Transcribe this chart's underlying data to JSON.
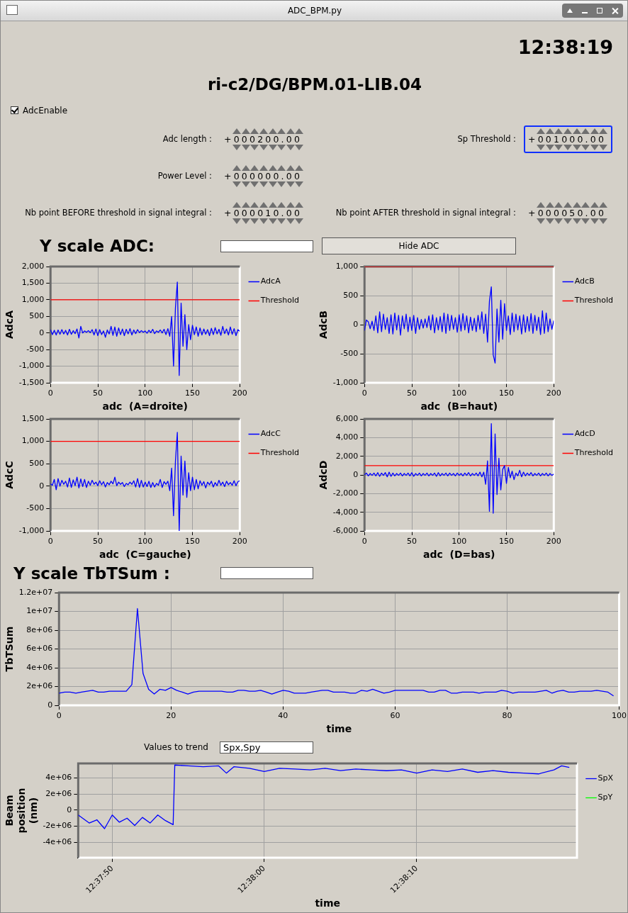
{
  "chart_data": [
    {
      "type": "other",
      "title": "ri-c2/DG/BPM.01-LIB.04",
      "annotations": [
        "ADC_BPM.py",
        "12:38:19",
        "AdcEnable",
        "Adc length :",
        "+000200.00",
        "Sp Threshold :",
        "+001000.00",
        "Power Level :",
        "+000000.00",
        "Nb point BEFORE threshold in signal integral :",
        "+000010.00",
        "Nb point AFTER threshold in signal integral :",
        "+000050.00",
        "Y scale ADC:",
        "Hide ADC"
      ]
    },
    {
      "type": "line",
      "xlabel": "adc  (A=droite)",
      "ylabel": "AdcA",
      "xlim": [
        0,
        200
      ],
      "xticks": [
        0,
        50,
        100,
        150,
        200
      ],
      "ylim": [
        -1500,
        2000
      ],
      "yticks": [
        {
          "value": -1500,
          "label": "-1,500"
        },
        {
          "value": -1000,
          "label": "-1,000"
        },
        -500,
        0,
        500,
        {
          "value": 1000,
          "label": "1,000"
        },
        {
          "value": 1500,
          "label": "1,500"
        },
        {
          "value": 2000,
          "label": "2,000"
        }
      ],
      "grid": true,
      "legend": "right",
      "x": [
        0,
        2,
        4,
        6,
        8,
        10,
        12,
        14,
        16,
        18,
        20,
        22,
        24,
        26,
        28,
        30,
        32,
        34,
        36,
        38,
        40,
        42,
        44,
        46,
        48,
        50,
        52,
        54,
        56,
        58,
        60,
        62,
        64,
        66,
        68,
        70,
        72,
        74,
        76,
        78,
        80,
        82,
        84,
        86,
        88,
        90,
        92,
        94,
        96,
        98,
        100,
        102,
        104,
        106,
        108,
        110,
        112,
        114,
        116,
        118,
        120,
        122,
        124,
        126,
        128,
        130,
        132,
        134,
        136,
        138,
        140,
        142,
        144,
        146,
        148,
        150,
        152,
        154,
        156,
        158,
        160,
        162,
        164,
        166,
        168,
        170,
        172,
        174,
        176,
        178,
        180,
        182,
        184,
        186,
        188,
        190,
        192,
        194,
        196,
        198,
        200
      ],
      "series": [
        {
          "name": "AdcA",
          "color": "#0000ff",
          "values": [
            100,
            -50,
            80,
            -60,
            90,
            -40,
            100,
            -30,
            80,
            -60,
            110,
            -40,
            70,
            -20,
            120,
            -150,
            200,
            0,
            60,
            20,
            70,
            10,
            100,
            -60,
            120,
            -80,
            100,
            -50,
            60,
            -130,
            90,
            -30,
            200,
            -70,
            180,
            -100,
            150,
            -50,
            120,
            -80,
            110,
            -30,
            130,
            -60,
            90,
            -20,
            100,
            10,
            70,
            20,
            60,
            -10,
            80,
            10,
            110,
            -20,
            60,
            20,
            90,
            0,
            110,
            -50,
            130,
            -100,
            500,
            -1000,
            750,
            1530,
            -1280,
            900,
            -400,
            550,
            -500,
            250,
            -200,
            230,
            -50,
            180,
            -100,
            150,
            -60,
            120,
            -40,
            100,
            -80,
            140,
            -50,
            160,
            -30,
            110,
            -70,
            200,
            -20,
            120,
            -60,
            180,
            -40,
            130,
            -80,
            100,
            50
          ]
        },
        {
          "name": "Threshold",
          "color": "#ff0000",
          "x": [
            0,
            200
          ],
          "values": [
            1000,
            1000
          ]
        }
      ]
    },
    {
      "type": "line",
      "xlabel": "adc  (B=haut)",
      "ylabel": "AdcB",
      "xlim": [
        0,
        200
      ],
      "xticks": [
        0,
        50,
        100,
        150,
        200
      ],
      "ylim": [
        -1000,
        1000
      ],
      "yticks": [
        {
          "value": -1000,
          "label": "-1,000"
        },
        -500,
        0,
        500,
        {
          "value": 1000,
          "label": "1,000"
        }
      ],
      "grid": true,
      "legend": "right",
      "x": [
        0,
        2,
        4,
        6,
        8,
        10,
        12,
        14,
        16,
        18,
        20,
        22,
        24,
        26,
        28,
        30,
        32,
        34,
        36,
        38,
        40,
        42,
        44,
        46,
        48,
        50,
        52,
        54,
        56,
        58,
        60,
        62,
        64,
        66,
        68,
        70,
        72,
        74,
        76,
        78,
        80,
        82,
        84,
        86,
        88,
        90,
        92,
        94,
        96,
        98,
        100,
        102,
        104,
        106,
        108,
        110,
        112,
        114,
        116,
        118,
        120,
        122,
        124,
        126,
        128,
        130,
        132,
        134,
        136,
        138,
        140,
        142,
        144,
        146,
        148,
        150,
        152,
        154,
        156,
        158,
        160,
        162,
        164,
        166,
        168,
        170,
        172,
        174,
        176,
        178,
        180,
        182,
        184,
        186,
        188,
        190,
        192,
        194,
        196,
        198,
        200
      ],
      "series": [
        {
          "name": "AdcB",
          "color": "#0000ff",
          "values": [
            -100,
            80,
            50,
            -70,
            60,
            -100,
            150,
            -140,
            220,
            -120,
            180,
            -80,
            120,
            -150,
            170,
            -160,
            200,
            -90,
            160,
            -180,
            150,
            -70,
            180,
            -120,
            130,
            -100,
            160,
            -150,
            120,
            -80,
            90,
            -60,
            100,
            -50,
            150,
            -90,
            170,
            -140,
            120,
            -90,
            140,
            -120,
            200,
            -150,
            180,
            -100,
            160,
            -80,
            120,
            -130,
            170,
            -110,
            190,
            -90,
            150,
            -140,
            130,
            -100,
            110,
            -120,
            160,
            -80,
            220,
            -150,
            180,
            -300,
            400,
            650,
            -520,
            -660,
            270,
            -300,
            420,
            -250,
            360,
            -100,
            150,
            -170,
            200,
            -120,
            180,
            -90,
            150,
            -160,
            170,
            -130,
            140,
            -110,
            190,
            -150,
            160,
            -100,
            130,
            -170,
            240,
            -150,
            200,
            -120,
            100,
            -80,
            70
          ]
        },
        {
          "name": "Threshold",
          "color": "#ff0000",
          "x": [
            0,
            200
          ],
          "values": [
            1000,
            1000
          ]
        }
      ]
    },
    {
      "type": "line",
      "xlabel": "adc  (C=gauche)",
      "ylabel": "AdcC",
      "xlim": [
        0,
        200
      ],
      "xticks": [
        0,
        50,
        100,
        150,
        200
      ],
      "ylim": [
        -1000,
        1500
      ],
      "yticks": [
        {
          "value": -1000,
          "label": "-1,000"
        },
        -500,
        0,
        500,
        {
          "value": 1000,
          "label": "1,000"
        },
        {
          "value": 1500,
          "label": "1,500"
        }
      ],
      "grid": true,
      "legend": "right",
      "x": [
        0,
        2,
        4,
        6,
        8,
        10,
        12,
        14,
        16,
        18,
        20,
        22,
        24,
        26,
        28,
        30,
        32,
        34,
        36,
        38,
        40,
        42,
        44,
        46,
        48,
        50,
        52,
        54,
        56,
        58,
        60,
        62,
        64,
        66,
        68,
        70,
        72,
        74,
        76,
        78,
        80,
        82,
        84,
        86,
        88,
        90,
        92,
        94,
        96,
        98,
        100,
        102,
        104,
        106,
        108,
        110,
        112,
        114,
        116,
        118,
        120,
        122,
        124,
        126,
        128,
        130,
        132,
        134,
        136,
        138,
        140,
        142,
        144,
        146,
        148,
        150,
        152,
        154,
        156,
        158,
        160,
        162,
        164,
        166,
        168,
        170,
        172,
        174,
        176,
        178,
        180,
        182,
        184,
        186,
        188,
        190,
        192,
        194,
        196,
        198,
        200
      ],
      "series": [
        {
          "name": "AdcC",
          "color": "#0000ff",
          "values": [
            50,
            20,
            150,
            -80,
            170,
            0,
            130,
            40,
            110,
            -20,
            180,
            -30,
            140,
            10,
            200,
            -40,
            160,
            -10,
            150,
            -30,
            110,
            20,
            130,
            40,
            90,
            10,
            120,
            30,
            100,
            -20,
            80,
            30,
            110,
            50,
            200,
            10,
            90,
            40,
            80,
            -10,
            60,
            30,
            90,
            40,
            120,
            -20,
            170,
            -30,
            130,
            -20,
            90,
            -10,
            110,
            -30,
            80,
            -20,
            60,
            20,
            150,
            -30,
            100,
            40,
            110,
            -100,
            400,
            -660,
            550,
            1200,
            -1000,
            670,
            -200,
            560,
            -250,
            300,
            -100,
            200,
            -80,
            150,
            -60,
            120,
            20,
            100,
            -40,
            90,
            30,
            110,
            -20,
            80,
            10,
            130,
            20,
            90,
            -10,
            110,
            30,
            80,
            20,
            120,
            10,
            100,
            120
          ]
        },
        {
          "name": "Threshold",
          "color": "#ff0000",
          "x": [
            0,
            200
          ],
          "values": [
            1000,
            1000
          ]
        }
      ]
    },
    {
      "type": "line",
      "xlabel": "adc  (D=bas)",
      "ylabel": "AdcD",
      "xlim": [
        0,
        200
      ],
      "xticks": [
        0,
        50,
        100,
        150,
        200
      ],
      "ylim": [
        -6000,
        6000
      ],
      "yticks": [
        {
          "value": -6000,
          "label": "-6,000"
        },
        {
          "value": -4000,
          "label": "-4,000"
        },
        {
          "value": -2000,
          "label": "-2,000"
        },
        0,
        {
          "value": 2000,
          "label": "2,000"
        },
        {
          "value": 4000,
          "label": "4,000"
        },
        {
          "value": 6000,
          "label": "6,000"
        }
      ],
      "grid": true,
      "legend": "right",
      "x": [
        0,
        2,
        4,
        6,
        8,
        10,
        12,
        14,
        16,
        18,
        20,
        22,
        24,
        26,
        28,
        30,
        32,
        34,
        36,
        38,
        40,
        42,
        44,
        46,
        48,
        50,
        52,
        54,
        56,
        58,
        60,
        62,
        64,
        66,
        68,
        70,
        72,
        74,
        76,
        78,
        80,
        82,
        84,
        86,
        88,
        90,
        92,
        94,
        96,
        98,
        100,
        102,
        104,
        106,
        108,
        110,
        112,
        114,
        116,
        118,
        120,
        122,
        124,
        126,
        128,
        130,
        132,
        134,
        136,
        138,
        140,
        142,
        144,
        146,
        148,
        150,
        152,
        154,
        156,
        158,
        160,
        162,
        164,
        166,
        168,
        170,
        172,
        174,
        176,
        178,
        180,
        182,
        184,
        186,
        188,
        190,
        192,
        194,
        196,
        198,
        200
      ],
      "series": [
        {
          "name": "AdcD",
          "color": "#0000ff",
          "values": [
            0,
            200,
            -100,
            150,
            -50,
            200,
            -100,
            250,
            -150,
            200,
            -50,
            250,
            -200,
            300,
            -150,
            200,
            -100,
            150,
            -50,
            200,
            -100,
            150,
            -50,
            200,
            -100,
            250,
            -150,
            150,
            -50,
            200,
            -100,
            150,
            -50,
            200,
            -100,
            150,
            -50,
            200,
            -150,
            250,
            -100,
            150,
            -50,
            200,
            -100,
            200,
            -50,
            150,
            -100,
            200,
            -50,
            150,
            -100,
            200,
            -50,
            250,
            -100,
            150,
            -50,
            200,
            -100,
            300,
            -200,
            300,
            -1000,
            1500,
            -3900,
            5500,
            -4100,
            4400,
            -2100,
            1800,
            -1600,
            600,
            1000,
            -900,
            800,
            -300,
            400,
            -500,
            200,
            -100,
            500,
            -200,
            300,
            -100,
            200,
            -50,
            250,
            -100,
            150,
            -50,
            200,
            -100,
            150,
            -50,
            200,
            -100,
            150,
            -50,
            100
          ]
        },
        {
          "name": "Threshold",
          "color": "#ff0000",
          "x": [
            0,
            200
          ],
          "values": [
            1000,
            1000
          ]
        }
      ]
    },
    {
      "type": "line",
      "title": "Y scale TbTSum :",
      "xlabel": "time",
      "ylabel": "TbTSum",
      "xlim": [
        0,
        100
      ],
      "xticks": [
        0,
        20,
        40,
        60,
        80,
        100
      ],
      "ylim": [
        0,
        12000000
      ],
      "yticks": [
        0,
        {
          "value": 2000000,
          "label": "2e+06"
        },
        {
          "value": 4000000,
          "label": "4e+06"
        },
        {
          "value": 6000000,
          "label": "6e+06"
        },
        {
          "value": 8000000,
          "label": "8e+06"
        },
        {
          "value": 10000000,
          "label": "1e+07"
        },
        {
          "value": 12000000,
          "label": "1.2e+07"
        }
      ],
      "grid": true,
      "x": [
        0,
        1,
        2,
        3,
        4,
        5,
        6,
        7,
        8,
        9,
        10,
        11,
        12,
        13,
        14,
        15,
        16,
        17,
        18,
        19,
        20,
        21,
        22,
        23,
        24,
        25,
        26,
        27,
        28,
        29,
        30,
        31,
        32,
        33,
        34,
        35,
        36,
        37,
        38,
        39,
        40,
        41,
        42,
        43,
        44,
        45,
        46,
        47,
        48,
        49,
        50,
        51,
        52,
        53,
        54,
        55,
        56,
        57,
        58,
        59,
        60,
        61,
        62,
        63,
        64,
        65,
        66,
        67,
        68,
        69,
        70,
        71,
        72,
        73,
        74,
        75,
        76,
        77,
        78,
        79,
        80,
        81,
        82,
        83,
        84,
        85,
        86,
        87,
        88,
        89,
        90,
        91,
        92,
        93,
        94,
        95,
        96,
        97,
        98,
        99
      ],
      "series": [
        {
          "color": "#0000ff",
          "values": [
            1300000,
            1400000,
            1400000,
            1300000,
            1400000,
            1500000,
            1600000,
            1400000,
            1400000,
            1500000,
            1500000,
            1500000,
            1500000,
            2200000,
            10300000,
            3400000,
            1700000,
            1200000,
            1700000,
            1600000,
            1900000,
            1600000,
            1400000,
            1200000,
            1400000,
            1500000,
            1500000,
            1500000,
            1500000,
            1500000,
            1400000,
            1400000,
            1600000,
            1600000,
            1500000,
            1500000,
            1600000,
            1400000,
            1200000,
            1400000,
            1600000,
            1500000,
            1300000,
            1300000,
            1300000,
            1400000,
            1500000,
            1600000,
            1600000,
            1400000,
            1400000,
            1400000,
            1300000,
            1300000,
            1600000,
            1500000,
            1700000,
            1500000,
            1300000,
            1400000,
            1600000,
            1600000,
            1600000,
            1600000,
            1600000,
            1600000,
            1400000,
            1400000,
            1600000,
            1600000,
            1300000,
            1300000,
            1400000,
            1400000,
            1400000,
            1300000,
            1400000,
            1400000,
            1400000,
            1600000,
            1500000,
            1300000,
            1400000,
            1400000,
            1400000,
            1400000,
            1500000,
            1600000,
            1300000,
            1500000,
            1600000,
            1400000,
            1400000,
            1500000,
            1500000,
            1500000,
            1600000,
            1500000,
            1400000,
            1000000
          ]
        }
      ]
    },
    {
      "type": "line",
      "annotations": [
        "Values to trend",
        "Spx,Spy"
      ],
      "xlabel": "time",
      "ylabel": "Beam position (nm)",
      "xlim": [
        12.62994,
        12.63903
      ],
      "xticks": [
        {
          "value": 12.63056,
          "label": "12:37:50"
        },
        {
          "value": 12.63333,
          "label": "12:38:00"
        },
        {
          "value": 12.63611,
          "label": "12:38:10"
        }
      ],
      "ylim": [
        -5900000,
        5800000
      ],
      "yticks": [
        {
          "value": -4000000,
          "label": "-4e+06"
        },
        {
          "value": -2000000,
          "label": "-2e+06"
        },
        0,
        {
          "value": 2000000,
          "label": "2e+06"
        },
        {
          "value": 4000000,
          "label": "4e+06"
        }
      ],
      "grid": true,
      "legend": "right",
      "series": [
        {
          "name": "SpX",
          "color": "#0000ff",
          "x": [
            12.62994,
            12.63014,
            12.63028,
            12.63042,
            12.63056,
            12.63069,
            12.63083,
            12.63097,
            12.63111,
            12.63125,
            12.63139,
            12.63153,
            12.63167,
            12.6317,
            12.63194,
            12.63222,
            12.6325,
            12.63264,
            12.63278,
            12.63306,
            12.63333,
            12.63361,
            12.63389,
            12.63417,
            12.63444,
            12.63472,
            12.635,
            12.63528,
            12.63556,
            12.63583,
            12.63611,
            12.63639,
            12.63667,
            12.63694,
            12.63722,
            12.6375,
            12.63778,
            12.63806,
            12.63833,
            12.63861,
            12.63875,
            12.63889
          ],
          "values": [
            -600000,
            -1600000,
            -1200000,
            -2300000,
            -600000,
            -1500000,
            -1000000,
            -1900000,
            -900000,
            -1600000,
            -600000,
            -1300000,
            -1800000,
            5600000,
            5500000,
            5400000,
            5500000,
            4600000,
            5400000,
            5200000,
            4800000,
            5200000,
            5100000,
            5000000,
            5200000,
            4900000,
            5100000,
            5000000,
            4900000,
            5000000,
            4600000,
            5000000,
            4800000,
            5100000,
            4700000,
            4900000,
            4700000,
            4600000,
            4500000,
            5000000,
            5500000,
            5300000
          ]
        },
        {
          "name": "SpY",
          "color": "#00ff00"
        }
      ]
    }
  ]
}
